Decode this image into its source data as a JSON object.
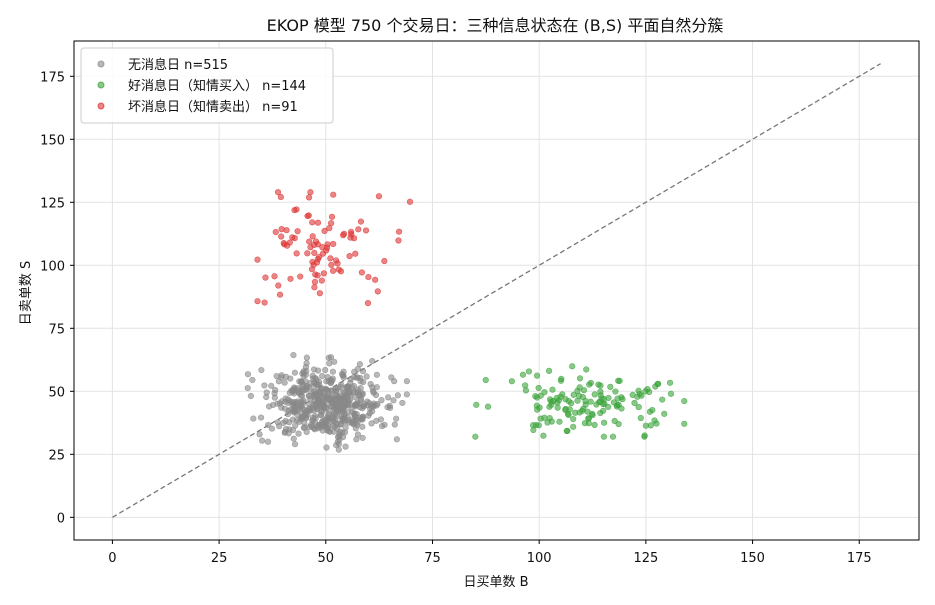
{
  "chart_data": {
    "type": "scatter",
    "title": "EKOP 模型 750 个交易日：三种信息状态在 (B,S) 平面自然分簇",
    "xlabel": "日买单数 B",
    "ylabel": "日卖单数 S",
    "xlim": [
      -9,
      189
    ],
    "ylim": [
      -9,
      189
    ],
    "xticks": [
      0,
      25,
      50,
      75,
      100,
      125,
      150,
      175
    ],
    "yticks": [
      0,
      25,
      50,
      75,
      100,
      125,
      150,
      175
    ],
    "grid": true,
    "legend_position": "top-left",
    "reference_line": {
      "x": [
        0,
        180
      ],
      "y": [
        0,
        180
      ],
      "style": "dashed",
      "color": "#777777"
    },
    "series": [
      {
        "name": "无消息日 n=515",
        "color": "#888888",
        "center": [
          50,
          45
        ],
        "spread": [
          7,
          7
        ],
        "count": 515,
        "x_range": [
          31,
          69
        ],
        "y_range": [
          24,
          68
        ]
      },
      {
        "name": "好消息日（知情买入） n=144",
        "color": "#3aa33a",
        "center": [
          110,
          45
        ],
        "spread": [
          11,
          7
        ],
        "count": 144,
        "x_range": [
          83,
          134
        ],
        "y_range": [
          32,
          65
        ]
      },
      {
        "name": "坏消息日（知情卖出） n=91",
        "color": "#dd3333",
        "center": [
          50,
          107
        ],
        "spread": [
          8,
          9
        ],
        "count": 91,
        "x_range": [
          34,
          70
        ],
        "y_range": [
          85,
          129
        ]
      }
    ]
  }
}
